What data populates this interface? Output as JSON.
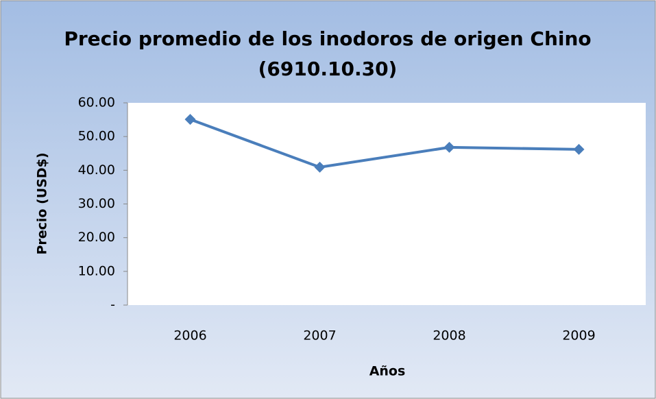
{
  "chart_data": {
    "type": "line",
    "title": [
      "Precio promedio de los inodoros de origen Chino",
      "(6910.10.30)"
    ],
    "x_label": "Años",
    "y_label": "Precio (USD$)",
    "categories": [
      "2006",
      "2007",
      "2008",
      "2009"
    ],
    "series": [
      {
        "name": "Precio",
        "color": "#4a7ebb",
        "values": [
          55.1,
          40.9,
          46.8,
          46.2
        ]
      }
    ],
    "ylim": [
      0,
      60
    ],
    "yticks": [
      {
        "value": 0,
        "label": "-"
      },
      {
        "value": 10,
        "label": "10.00"
      },
      {
        "value": 20,
        "label": "20.00"
      },
      {
        "value": 30,
        "label": "30.00"
      },
      {
        "value": 40,
        "label": "40.00"
      },
      {
        "value": 50,
        "label": "50.00"
      },
      {
        "value": 60,
        "label": "60.00"
      }
    ],
    "grid": false
  }
}
